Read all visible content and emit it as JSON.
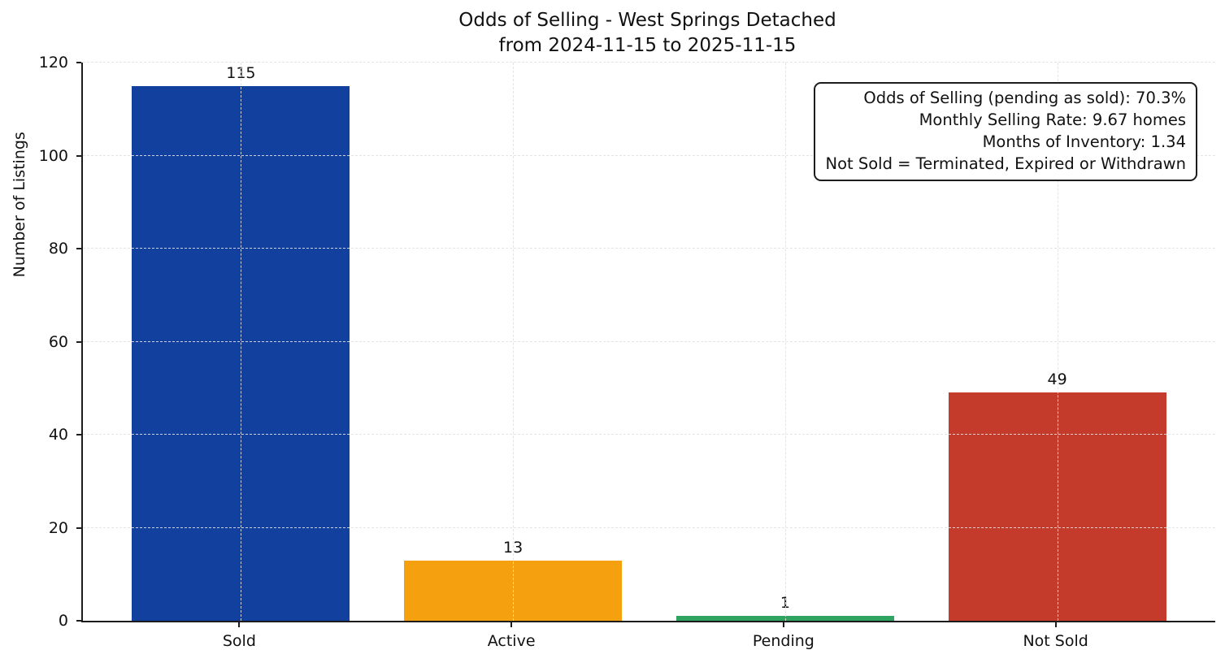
{
  "chart_data": {
    "type": "bar",
    "title": "Odds of Selling - West Springs Detached",
    "subtitle": "from 2024-11-15 to 2025-11-15",
    "ylabel": "Number of Listings",
    "xlabel": "",
    "categories": [
      "Sold",
      "Active",
      "Pending",
      "Not Sold"
    ],
    "values": [
      115,
      13,
      1,
      49
    ],
    "bar_colors": [
      "#11409E",
      "#F4A00F",
      "#2FA360",
      "#C43A2B"
    ],
    "ylim": [
      0,
      120
    ],
    "yticks": [
      0,
      20,
      40,
      60,
      80,
      100,
      120
    ],
    "grid": "dashed, both axes, drawn above bars",
    "legend": "none",
    "annotation": {
      "lines": [
        "Odds of Selling (pending as sold): 70.3%",
        "Monthly Selling Rate: 9.67 homes",
        "Months of Inventory: 1.34",
        "Not Sold = Terminated, Expired or Withdrawn"
      ]
    }
  },
  "colors": {
    "background": "#ffffff",
    "text": "#111111",
    "spine": "#1c1c1c",
    "gridline": "#e1e1e1"
  }
}
